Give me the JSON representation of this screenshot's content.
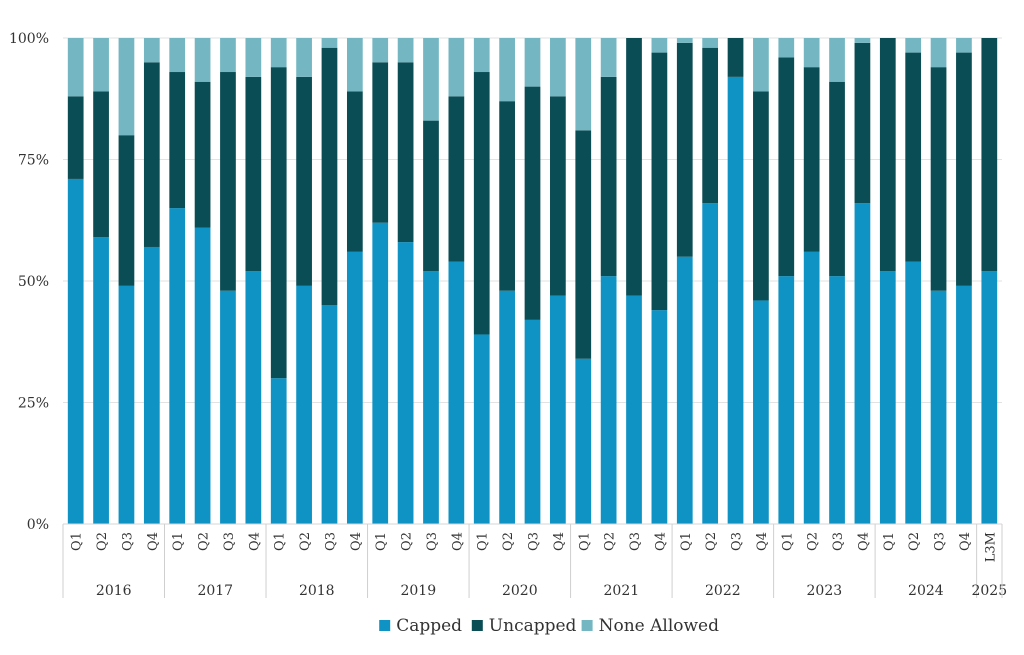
{
  "chart_data": {
    "type": "bar",
    "stacked": true,
    "title": "",
    "xlabel": "",
    "ylabel": "",
    "ylim": [
      0,
      100
    ],
    "yticks": [
      "0%",
      "25%",
      "50%",
      "75%",
      "100%"
    ],
    "grid": true,
    "legend_position": "bottom",
    "colors": {
      "Capped": "#0f93c4",
      "Uncapped": "#0b4d55",
      "None Allowed": "#74b7c3"
    },
    "groups": [
      {
        "label": "2016",
        "quarters": [
          "Q1",
          "Q2",
          "Q3",
          "Q4"
        ]
      },
      {
        "label": "2017",
        "quarters": [
          "Q1",
          "Q2",
          "Q3",
          "Q4"
        ]
      },
      {
        "label": "2018",
        "quarters": [
          "Q1",
          "Q2",
          "Q3",
          "Q4"
        ]
      },
      {
        "label": "2019",
        "quarters": [
          "Q1",
          "Q2",
          "Q3",
          "Q4"
        ]
      },
      {
        "label": "2020",
        "quarters": [
          "Q1",
          "Q2",
          "Q3",
          "Q4"
        ]
      },
      {
        "label": "2021",
        "quarters": [
          "Q1",
          "Q2",
          "Q3",
          "Q4"
        ]
      },
      {
        "label": "2022",
        "quarters": [
          "Q1",
          "Q2",
          "Q3",
          "Q4"
        ]
      },
      {
        "label": "2023",
        "quarters": [
          "Q1",
          "Q2",
          "Q3",
          "Q4"
        ]
      },
      {
        "label": "2024",
        "quarters": [
          "Q1",
          "Q2",
          "Q3",
          "Q4"
        ]
      },
      {
        "label": "2025",
        "quarters": [
          "L3M"
        ]
      }
    ],
    "series": [
      {
        "name": "Capped",
        "values": [
          71,
          59,
          49,
          57,
          65,
          61,
          48,
          52,
          30,
          49,
          45,
          56,
          62,
          58,
          52,
          54,
          39,
          48,
          42,
          47,
          34,
          51,
          47,
          44,
          55,
          66,
          92,
          46,
          51,
          56,
          51,
          66,
          52,
          54,
          48,
          49,
          52
        ]
      },
      {
        "name": "Uncapped",
        "values": [
          17,
          30,
          31,
          38,
          28,
          30,
          45,
          40,
          64,
          43,
          53,
          33,
          33,
          37,
          31,
          34,
          54,
          39,
          48,
          41,
          47,
          41,
          53,
          53,
          44,
          32,
          8,
          43,
          45,
          38,
          40,
          33,
          48,
          43,
          46,
          48,
          48
        ]
      },
      {
        "name": "None Allowed",
        "values": [
          12,
          11,
          20,
          5,
          7,
          9,
          7,
          8,
          6,
          8,
          2,
          11,
          5,
          5,
          17,
          12,
          7,
          13,
          10,
          12,
          19,
          8,
          0,
          3,
          1,
          2,
          0,
          11,
          4,
          6,
          9,
          1,
          0,
          3,
          6,
          3,
          0
        ]
      }
    ]
  }
}
